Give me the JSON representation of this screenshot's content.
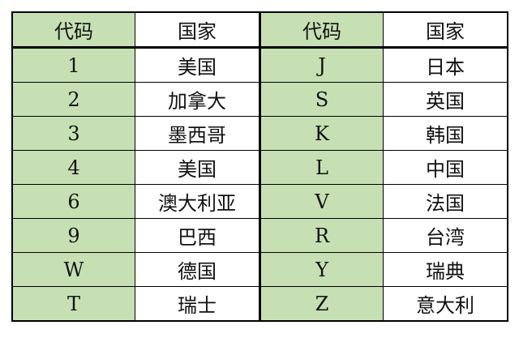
{
  "header": {
    "code": "代码",
    "country": "国家"
  },
  "rows": [
    {
      "code1": "1",
      "country1": "美国",
      "code2": "J",
      "country2": "日本"
    },
    {
      "code1": "2",
      "country1": "加拿大",
      "code2": "S",
      "country2": "英国"
    },
    {
      "code1": "3",
      "country1": "墨西哥",
      "code2": "K",
      "country2": "韩国"
    },
    {
      "code1": "4",
      "country1": "美国",
      "code2": "L",
      "country2": "中国"
    },
    {
      "code1": "6",
      "country1": "澳大利亚",
      "code2": "V",
      "country2": "法国"
    },
    {
      "code1": "9",
      "country1": "巴西",
      "code2": "R",
      "country2": "台湾"
    },
    {
      "code1": "W",
      "country1": "德国",
      "code2": "Y",
      "country2": "瑞典"
    },
    {
      "code1": "T",
      "country1": "瑞士",
      "code2": "Z",
      "country2": "意大利"
    }
  ],
  "colors": {
    "code_column_bg": "#c6e0b4",
    "border": "#000000"
  }
}
